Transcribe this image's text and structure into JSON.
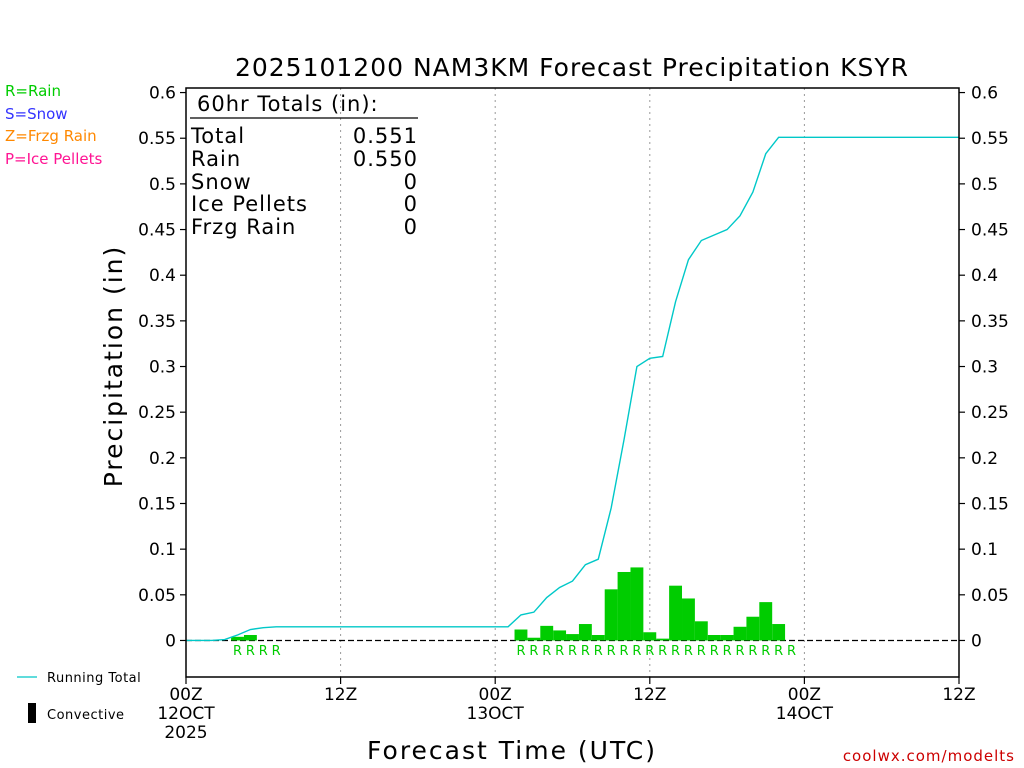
{
  "chart_data": {
    "type": "bar",
    "title": "2025101200 NAM3KM Forecast Precipitation KSYR",
    "xlabel": "Forecast Time (UTC)",
    "ylabel": "Precipitation (in)",
    "ylim": [
      -0.04,
      0.605
    ],
    "y_ticks": [
      0,
      0.05,
      0.1,
      0.15,
      0.2,
      0.25,
      0.3,
      0.35,
      0.4,
      0.45,
      0.5,
      0.55,
      0.6
    ],
    "y_tick_labels": [
      "0",
      "0.05",
      "0.1",
      "0.15",
      "0.2",
      "0.25",
      "0.3",
      "0.35",
      "0.4",
      "0.45",
      "0.5",
      "0.55",
      "0.6"
    ],
    "xlim_hours": [
      0,
      60
    ],
    "x_ticks": [
      {
        "hour": 0,
        "line1": "00Z",
        "line2": "12OCT",
        "line3": "2025"
      },
      {
        "hour": 12,
        "line1": "12Z",
        "line2": "",
        "line3": ""
      },
      {
        "hour": 24,
        "line1": "00Z",
        "line2": "13OCT",
        "line3": ""
      },
      {
        "hour": 36,
        "line1": "12Z",
        "line2": "",
        "line3": ""
      },
      {
        "hour": 48,
        "line1": "00Z",
        "line2": "14OCT",
        "line3": ""
      },
      {
        "hour": 60,
        "line1": "12Z",
        "line2": "",
        "line3": ""
      }
    ],
    "grid": "vertical dotted at each x tick",
    "legend_types": [
      {
        "label": "R=Rain",
        "color": "#00cc00"
      },
      {
        "label": "S=Snow",
        "color": "#3333ff"
      },
      {
        "label": "Z=Frzg Rain",
        "color": "#ff8800"
      },
      {
        "label": "P=Ice Pellets",
        "color": "#ff1493"
      }
    ],
    "legend_series": {
      "running_total_label": "Running Total",
      "convective_label": "Convective"
    },
    "totals_box": {
      "heading": "60hr Totals (in):",
      "rows": [
        {
          "label": "Total",
          "value": "0.551"
        },
        {
          "label": "Rain",
          "value": "0.550"
        },
        {
          "label": "Snow",
          "value": "0"
        },
        {
          "label": "Ice Pellets",
          "value": "0"
        },
        {
          "label": "Frzg Rain",
          "value": "0"
        }
      ]
    },
    "series": [
      {
        "name": "Hourly Rain",
        "type": "bar",
        "color": "#00cc00",
        "bar_width_hours": 1,
        "hours": [
          4,
          5,
          26,
          27,
          28,
          29,
          30,
          31,
          32,
          33,
          34,
          35,
          36,
          37,
          38,
          39,
          40,
          41,
          42,
          43,
          44,
          45,
          46
        ],
        "values": [
          0.004,
          0.006,
          0.012,
          0.003,
          0.016,
          0.011,
          0.007,
          0.018,
          0.006,
          0.056,
          0.075,
          0.08,
          0.009,
          0.002,
          0.06,
          0.046,
          0.021,
          0.006,
          0.006,
          0.015,
          0.026,
          0.042,
          0.018
        ]
      },
      {
        "name": "Running Total",
        "type": "line",
        "color": "#00c8c8",
        "hours": [
          0,
          1,
          2,
          3,
          4,
          5,
          6,
          7,
          8,
          9,
          10,
          11,
          12,
          13,
          14,
          15,
          16,
          17,
          18,
          19,
          20,
          21,
          22,
          23,
          24,
          25,
          26,
          27,
          28,
          29,
          30,
          31,
          32,
          33,
          34,
          35,
          36,
          37,
          38,
          39,
          40,
          41,
          42,
          43,
          44,
          45,
          46,
          47,
          48,
          49,
          50,
          51,
          52,
          53,
          54,
          55,
          56,
          57,
          58,
          59,
          60
        ],
        "values": [
          0,
          0,
          0,
          0.001,
          0.006,
          0.012,
          0.014,
          0.015,
          0.015,
          0.015,
          0.015,
          0.015,
          0.015,
          0.015,
          0.015,
          0.015,
          0.015,
          0.015,
          0.015,
          0.015,
          0.015,
          0.015,
          0.015,
          0.015,
          0.015,
          0.015,
          0.028,
          0.031,
          0.047,
          0.058,
          0.065,
          0.083,
          0.089,
          0.145,
          0.22,
          0.3,
          0.309,
          0.311,
          0.371,
          0.417,
          0.438,
          0.444,
          0.45,
          0.465,
          0.491,
          0.533,
          0.551,
          0.551,
          0.551,
          0.551,
          0.551,
          0.551,
          0.551,
          0.551,
          0.551,
          0.551,
          0.551,
          0.551,
          0.551,
          0.551,
          0.551
        ]
      }
    ],
    "type_codes": {
      "color": "#00cc00",
      "hours": [
        4,
        5,
        6,
        7,
        26,
        27,
        28,
        29,
        30,
        31,
        32,
        33,
        34,
        35,
        36,
        37,
        38,
        39,
        40,
        41,
        42,
        43,
        44,
        45,
        46,
        47
      ],
      "codes": [
        "R",
        "R",
        "R",
        "R",
        "R",
        "R",
        "R",
        "R",
        "R",
        "R",
        "R",
        "R",
        "R",
        "R",
        "R",
        "R",
        "R",
        "R",
        "R",
        "R",
        "R",
        "R",
        "R",
        "R",
        "R",
        "R"
      ]
    },
    "credit": "coolwx.com/modelts"
  }
}
